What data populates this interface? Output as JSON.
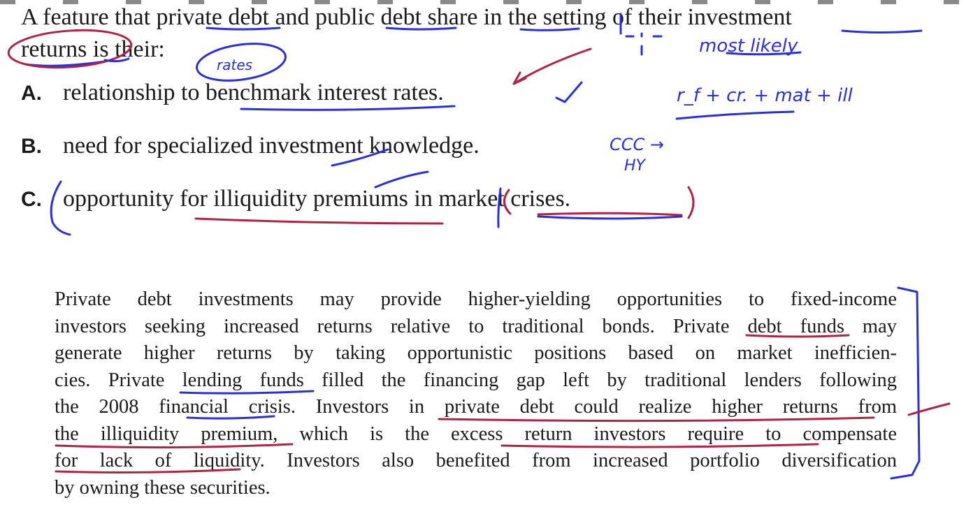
{
  "question": {
    "line1": "A feature that private debt and public debt share in the setting of their investment",
    "line2": "returns is their:"
  },
  "options": [
    {
      "letter": "A.",
      "text": "relationship to benchmark interest rates."
    },
    {
      "letter": "B.",
      "text": "need for specialized investment knowledge."
    },
    {
      "letter": "C.",
      "text": "opportunity for illiquidity premiums in market crises."
    }
  ],
  "explanation": {
    "lines": [
      "Private debt investments may provide higher-yielding opportunities to fixed-income",
      "investors seeking increased returns relative to traditional bonds. Private debt funds may",
      "generate higher returns by taking opportunistic positions based on market inefficien-",
      "cies. Private lending funds filled the financing gap left by traditional lenders following",
      "the 2008 financial crisis. Investors in private debt could realize higher returns from",
      "the illiquidity premium, which is the excess return investors require to compensate",
      "for lack of liquidity. Investors also benefited from increased portfolio diversification",
      "by owning these securities."
    ]
  },
  "annotations": {
    "rates": "rates",
    "most_likely": "most likely",
    "formula": "r_f + cr. + mat + ill",
    "ccc": "CCC →",
    "hy": "HY"
  },
  "colors": {
    "ink_blue": "#2b2fd6",
    "ink_red": "#b02246",
    "text": "#1a1a1a",
    "background": "#ffffff"
  }
}
